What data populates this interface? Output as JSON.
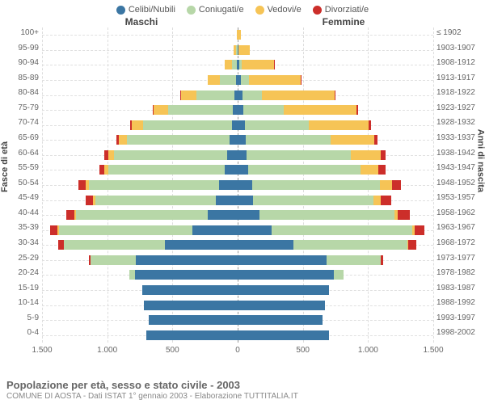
{
  "legend": [
    {
      "label": "Celibi/Nubili",
      "color": "#3b76a3"
    },
    {
      "label": "Coniugati/e",
      "color": "#b7d7a8"
    },
    {
      "label": "Vedovi/e",
      "color": "#f6c456"
    },
    {
      "label": "Divorziati/e",
      "color": "#cc2e2a"
    }
  ],
  "gender_left": "Maschi",
  "gender_right": "Femmine",
  "ylabel_left": "Fasce di età",
  "ylabel_right": "Anni di nascita",
  "xlim": 1500,
  "xtick_step": 500,
  "xticks": [
    "1.500",
    "1.000",
    "500",
    "0",
    "500",
    "1.000",
    "1.500"
  ],
  "background_color": "#ffffff",
  "grid_color": "#dddddd",
  "rows": [
    {
      "age": "0-4",
      "birth": "1998-2002",
      "m": [
        700,
        0,
        0,
        0
      ],
      "f": [
        700,
        0,
        0,
        0
      ]
    },
    {
      "age": "5-9",
      "birth": "1993-1997",
      "m": [
        680,
        0,
        0,
        0
      ],
      "f": [
        650,
        0,
        0,
        0
      ]
    },
    {
      "age": "10-14",
      "birth": "1988-1992",
      "m": [
        720,
        0,
        0,
        0
      ],
      "f": [
        670,
        0,
        0,
        0
      ]
    },
    {
      "age": "15-19",
      "birth": "1983-1987",
      "m": [
        730,
        0,
        0,
        0
      ],
      "f": [
        700,
        0,
        0,
        0
      ]
    },
    {
      "age": "20-24",
      "birth": "1978-1982",
      "m": [
        790,
        40,
        0,
        0
      ],
      "f": [
        740,
        70,
        0,
        0
      ]
    },
    {
      "age": "25-29",
      "birth": "1973-1977",
      "m": [
        780,
        350,
        0,
        10
      ],
      "f": [
        680,
        420,
        0,
        15
      ]
    },
    {
      "age": "30-34",
      "birth": "1968-1972",
      "m": [
        560,
        770,
        5,
        40
      ],
      "f": [
        430,
        870,
        10,
        60
      ]
    },
    {
      "age": "35-39",
      "birth": "1963-1967",
      "m": [
        350,
        1020,
        10,
        60
      ],
      "f": [
        260,
        1080,
        15,
        80
      ]
    },
    {
      "age": "40-44",
      "birth": "1958-1962",
      "m": [
        230,
        1010,
        15,
        60
      ],
      "f": [
        170,
        1030,
        30,
        90
      ]
    },
    {
      "age": "45-49",
      "birth": "1953-1957",
      "m": [
        170,
        920,
        20,
        55
      ],
      "f": [
        120,
        920,
        55,
        80
      ]
    },
    {
      "age": "50-54",
      "birth": "1948-1952",
      "m": [
        140,
        1000,
        25,
        55
      ],
      "f": [
        110,
        980,
        95,
        70
      ]
    },
    {
      "age": "55-59",
      "birth": "1943-1947",
      "m": [
        100,
        890,
        30,
        40
      ],
      "f": [
        80,
        860,
        140,
        55
      ]
    },
    {
      "age": "60-64",
      "birth": "1938-1942",
      "m": [
        80,
        870,
        45,
        30
      ],
      "f": [
        70,
        800,
        225,
        40
      ]
    },
    {
      "age": "65-69",
      "birth": "1933-1937",
      "m": [
        60,
        790,
        60,
        20
      ],
      "f": [
        60,
        650,
        335,
        30
      ]
    },
    {
      "age": "70-74",
      "birth": "1928-1932",
      "m": [
        45,
        680,
        85,
        15
      ],
      "f": [
        55,
        490,
        460,
        20
      ]
    },
    {
      "age": "75-79",
      "birth": "1923-1927",
      "m": [
        35,
        500,
        110,
        8
      ],
      "f": [
        45,
        310,
        555,
        12
      ]
    },
    {
      "age": "80-84",
      "birth": "1918-1922",
      "m": [
        25,
        290,
        120,
        5
      ],
      "f": [
        35,
        150,
        560,
        8
      ]
    },
    {
      "age": "85-89",
      "birth": "1913-1917",
      "m": [
        15,
        120,
        95,
        2
      ],
      "f": [
        25,
        60,
        400,
        4
      ]
    },
    {
      "age": "90-94",
      "birth": "1908-1912",
      "m": [
        8,
        35,
        55,
        0
      ],
      "f": [
        14,
        20,
        245,
        2
      ]
    },
    {
      "age": "95-99",
      "birth": "1903-1907",
      "m": [
        3,
        8,
        18,
        0
      ],
      "f": [
        5,
        4,
        85,
        0
      ]
    },
    {
      "age": "100+",
      "birth": "≤ 1902",
      "m": [
        1,
        1,
        4,
        0
      ],
      "f": [
        2,
        1,
        20,
        0
      ]
    }
  ],
  "caption_title": "Popolazione per età, sesso e stato civile - 2003",
  "caption_sub": "COMUNE DI AOSTA - Dati ISTAT 1° gennaio 2003 - Elaborazione TUTTITALIA.IT"
}
